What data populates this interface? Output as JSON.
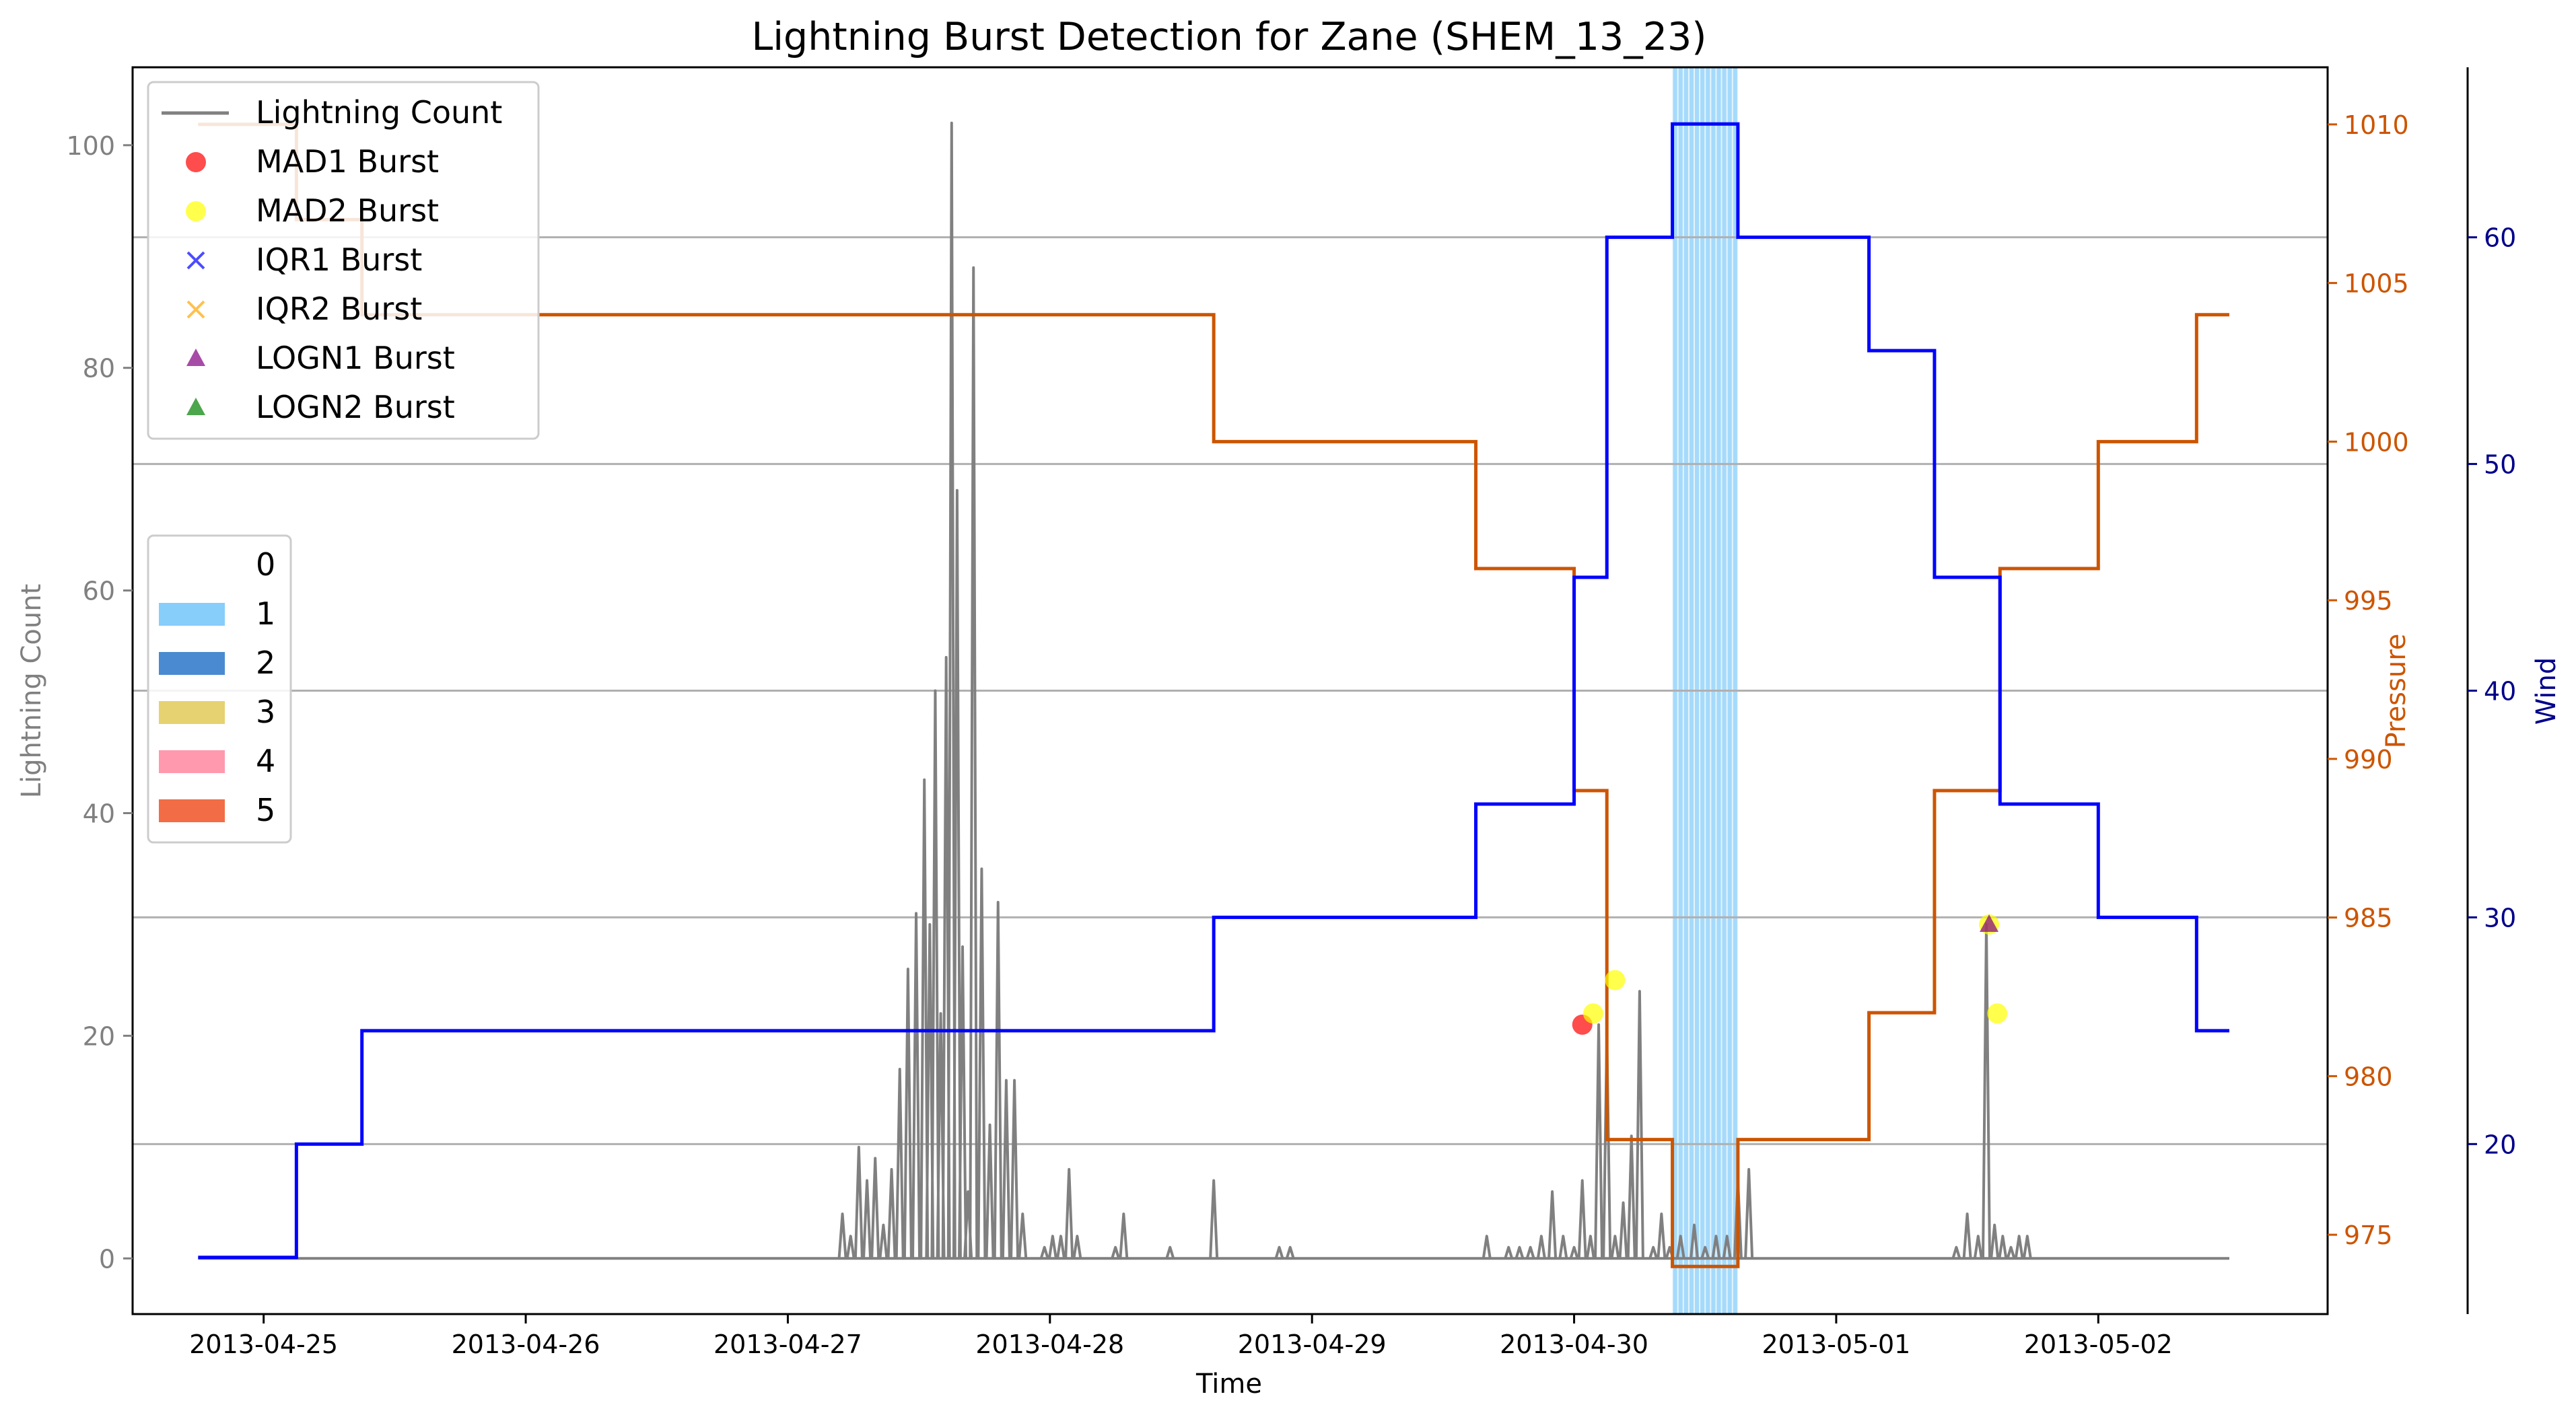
{
  "chart_data": {
    "type": "line",
    "title": "Lightning Burst Detection for Zane (SHEM_13_23)",
    "xlabel": "Time",
    "ylabel": "Lightning Count",
    "y2label": "Pressure",
    "y3label": "Wind",
    "x_range": [
      "2013-04-24T12:00",
      "2013-05-02T21:00"
    ],
    "ylim": [
      -5,
      107
    ],
    "y2lim": [
      972.5,
      1011.8
    ],
    "y3lim": [
      12.5,
      67.5
    ],
    "x_ticks": [
      "2013-04-25",
      "2013-04-26",
      "2013-04-27",
      "2013-04-28",
      "2013-04-29",
      "2013-04-30",
      "2013-05-01",
      "2013-05-02"
    ],
    "y_ticks": [
      0,
      20,
      40,
      60,
      80,
      100
    ],
    "y2_ticks": [
      975,
      980,
      985,
      990,
      995,
      1000,
      1005,
      1010
    ],
    "y3_ticks": [
      20,
      30,
      40,
      50,
      60
    ],
    "hlines_wind": [
      20,
      30,
      40,
      50,
      60
    ],
    "grid": false,
    "colors": {
      "lightning": "#808080",
      "pressure": "#cc5500",
      "wind": "#0000ff",
      "pressure_axis": "#cc5500",
      "wind_axis": "#00008b",
      "count_axis": "#808080",
      "category_band": "#87cefa",
      "mad1": "#ff0000",
      "mad2": "#ffff00",
      "iqr1": "#0000ff",
      "iqr2": "#ffa500",
      "logn1": "#800080",
      "logn2": "#008000"
    },
    "legend_position": "top-left",
    "legend": [
      {
        "label": "Lightning Count",
        "marker": "line",
        "color": "#808080"
      },
      {
        "label": "MAD1 Burst",
        "marker": "circle",
        "color": "#ff0000"
      },
      {
        "label": "MAD2 Burst",
        "marker": "circle",
        "color": "#ffff00"
      },
      {
        "label": "IQR1 Burst",
        "marker": "x",
        "color": "#0000ff"
      },
      {
        "label": "IQR2 Burst",
        "marker": "x",
        "color": "#ffa500"
      },
      {
        "label": "LOGN1 Burst",
        "marker": "triangle",
        "color": "#800080"
      },
      {
        "label": "LOGN2 Burst",
        "marker": "triangle",
        "color": "#008000"
      }
    ],
    "category_legend_position": "center-left",
    "category_legend": [
      {
        "label": "0",
        "color": "#ffffff"
      },
      {
        "label": "1",
        "color": "#87cefa"
      },
      {
        "label": "2",
        "color": "#4a8ad1"
      },
      {
        "label": "3",
        "color": "#e6d270"
      },
      {
        "label": "4",
        "color": "#ff99ad"
      },
      {
        "label": "5",
        "color": "#f26d45"
      }
    ],
    "category_band": {
      "category": 1,
      "start": "2013-04-30T09:00",
      "end": "2013-04-30T15:00"
    },
    "pressure": [
      {
        "x": "2013-04-24T18:00",
        "y": 1010
      },
      {
        "x": "2013-04-25T03:00",
        "y": 1007
      },
      {
        "x": "2013-04-25T09:00",
        "y": 1004
      },
      {
        "x": "2013-04-28T15:00",
        "y": 1000
      },
      {
        "x": "2013-04-29T15:00",
        "y": 996
      },
      {
        "x": "2013-04-30T00:00",
        "y": 989
      },
      {
        "x": "2013-04-30T03:00",
        "y": 978
      },
      {
        "x": "2013-04-30T09:00",
        "y": 974
      },
      {
        "x": "2013-04-30T15:00",
        "y": 978
      },
      {
        "x": "2013-05-01T03:00",
        "y": 982
      },
      {
        "x": "2013-05-01T09:00",
        "y": 989
      },
      {
        "x": "2013-05-01T15:00",
        "y": 996
      },
      {
        "x": "2013-05-02T00:00",
        "y": 1000
      },
      {
        "x": "2013-05-02T09:00",
        "y": 1004
      },
      {
        "x": "2013-05-02T12:00",
        "y": 1004
      }
    ],
    "wind": [
      {
        "x": "2013-04-24T18:00",
        "y": 15
      },
      {
        "x": "2013-04-25T03:00",
        "y": 20
      },
      {
        "x": "2013-04-25T09:00",
        "y": 25
      },
      {
        "x": "2013-04-28T15:00",
        "y": 30
      },
      {
        "x": "2013-04-29T15:00",
        "y": 35
      },
      {
        "x": "2013-04-30T00:00",
        "y": 45
      },
      {
        "x": "2013-04-30T03:00",
        "y": 60
      },
      {
        "x": "2013-04-30T09:00",
        "y": 65
      },
      {
        "x": "2013-04-30T15:00",
        "y": 60
      },
      {
        "x": "2013-05-01T03:00",
        "y": 55
      },
      {
        "x": "2013-05-01T09:00",
        "y": 45
      },
      {
        "x": "2013-05-01T15:00",
        "y": 35
      },
      {
        "x": "2013-05-02T00:00",
        "y": 30
      },
      {
        "x": "2013-05-02T09:00",
        "y": 25
      },
      {
        "x": "2013-05-02T12:00",
        "y": 25
      }
    ],
    "lightning": [
      {
        "x": "2013-04-27T05:00",
        "y": 4
      },
      {
        "x": "2013-04-27T05:45",
        "y": 2
      },
      {
        "x": "2013-04-27T06:30",
        "y": 10
      },
      {
        "x": "2013-04-27T07:15",
        "y": 7
      },
      {
        "x": "2013-04-27T08:00",
        "y": 9
      },
      {
        "x": "2013-04-27T08:45",
        "y": 3
      },
      {
        "x": "2013-04-27T09:30",
        "y": 8
      },
      {
        "x": "2013-04-27T10:15",
        "y": 17
      },
      {
        "x": "2013-04-27T11:00",
        "y": 26
      },
      {
        "x": "2013-04-27T11:45",
        "y": 31
      },
      {
        "x": "2013-04-27T12:30",
        "y": 43
      },
      {
        "x": "2013-04-27T13:00",
        "y": 30
      },
      {
        "x": "2013-04-27T13:30",
        "y": 51
      },
      {
        "x": "2013-04-27T14:00",
        "y": 22
      },
      {
        "x": "2013-04-27T14:30",
        "y": 54
      },
      {
        "x": "2013-04-27T15:00",
        "y": 102
      },
      {
        "x": "2013-04-27T15:30",
        "y": 69
      },
      {
        "x": "2013-04-27T16:00",
        "y": 28
      },
      {
        "x": "2013-04-27T16:30",
        "y": 6
      },
      {
        "x": "2013-04-27T17:00",
        "y": 89
      },
      {
        "x": "2013-04-27T17:45",
        "y": 35
      },
      {
        "x": "2013-04-27T18:30",
        "y": 12
      },
      {
        "x": "2013-04-27T19:15",
        "y": 32
      },
      {
        "x": "2013-04-27T20:00",
        "y": 16
      },
      {
        "x": "2013-04-27T20:45",
        "y": 16
      },
      {
        "x": "2013-04-27T21:30",
        "y": 4
      },
      {
        "x": "2013-04-27T23:30",
        "y": 1
      },
      {
        "x": "2013-04-28T00:15",
        "y": 2
      },
      {
        "x": "2013-04-28T01:00",
        "y": 2
      },
      {
        "x": "2013-04-28T01:45",
        "y": 8
      },
      {
        "x": "2013-04-28T02:30",
        "y": 2
      },
      {
        "x": "2013-04-28T06:00",
        "y": 1
      },
      {
        "x": "2013-04-28T06:45",
        "y": 4
      },
      {
        "x": "2013-04-28T11:00",
        "y": 1
      },
      {
        "x": "2013-04-28T15:00",
        "y": 7
      },
      {
        "x": "2013-04-28T21:00",
        "y": 1
      },
      {
        "x": "2013-04-28T22:00",
        "y": 1
      },
      {
        "x": "2013-04-29T16:00",
        "y": 2
      },
      {
        "x": "2013-04-29T18:00",
        "y": 1
      },
      {
        "x": "2013-04-29T19:00",
        "y": 1
      },
      {
        "x": "2013-04-29T20:00",
        "y": 1
      },
      {
        "x": "2013-04-29T21:00",
        "y": 2
      },
      {
        "x": "2013-04-29T22:00",
        "y": 6
      },
      {
        "x": "2013-04-29T23:00",
        "y": 2
      },
      {
        "x": "2013-04-30T00:00",
        "y": 1
      },
      {
        "x": "2013-04-30T00:45",
        "y": 7
      },
      {
        "x": "2013-04-30T01:30",
        "y": 2
      },
      {
        "x": "2013-04-30T02:15",
        "y": 21
      },
      {
        "x": "2013-04-30T03:00",
        "y": 20
      },
      {
        "x": "2013-04-30T03:45",
        "y": 2
      },
      {
        "x": "2013-04-30T04:30",
        "y": 5
      },
      {
        "x": "2013-04-30T05:15",
        "y": 11
      },
      {
        "x": "2013-04-30T06:00",
        "y": 24
      },
      {
        "x": "2013-04-30T07:15",
        "y": 1
      },
      {
        "x": "2013-04-30T08:00",
        "y": 4
      },
      {
        "x": "2013-04-30T08:45",
        "y": 1
      },
      {
        "x": "2013-04-30T09:45",
        "y": 2
      },
      {
        "x": "2013-04-30T11:00",
        "y": 3
      },
      {
        "x": "2013-04-30T12:00",
        "y": 1
      },
      {
        "x": "2013-04-30T13:00",
        "y": 2
      },
      {
        "x": "2013-04-30T14:00",
        "y": 2
      },
      {
        "x": "2013-04-30T15:00",
        "y": 7
      },
      {
        "x": "2013-04-30T16:00",
        "y": 8
      },
      {
        "x": "2013-05-01T11:00",
        "y": 1
      },
      {
        "x": "2013-05-01T12:00",
        "y": 4
      },
      {
        "x": "2013-05-01T13:00",
        "y": 2
      },
      {
        "x": "2013-05-01T13:45",
        "y": 30
      },
      {
        "x": "2013-05-01T14:30",
        "y": 3
      },
      {
        "x": "2013-05-01T15:15",
        "y": 2
      },
      {
        "x": "2013-05-01T16:00",
        "y": 1
      },
      {
        "x": "2013-05-01T16:45",
        "y": 2
      },
      {
        "x": "2013-05-01T17:30",
        "y": 2
      }
    ],
    "bursts": [
      {
        "method": "MAD1 Burst",
        "x": "2013-04-30T00:45",
        "y": 21
      },
      {
        "method": "MAD2 Burst",
        "x": "2013-04-30T01:45",
        "y": 22
      },
      {
        "method": "MAD2 Burst",
        "x": "2013-04-30T03:45",
        "y": 25
      },
      {
        "method": "MAD2 Burst",
        "x": "2013-05-01T14:00",
        "y": 30
      },
      {
        "method": "MAD2 Burst",
        "x": "2013-05-01T14:45",
        "y": 22
      },
      {
        "method": "LOGN1 Burst",
        "x": "2013-05-01T14:00",
        "y": 30
      }
    ]
  }
}
